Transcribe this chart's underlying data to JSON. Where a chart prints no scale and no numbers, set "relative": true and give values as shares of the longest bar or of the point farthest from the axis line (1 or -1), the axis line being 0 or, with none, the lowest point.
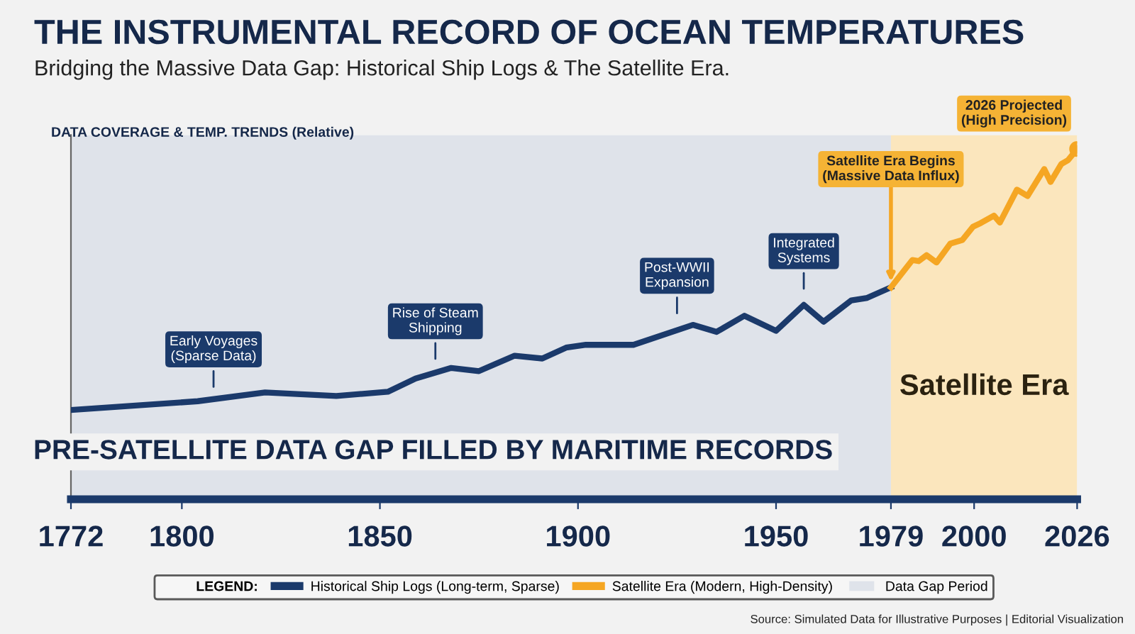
{
  "chart_data": {
    "type": "line",
    "title": "THE INSTRUMENTAL RECORD OF OCEAN TEMPERATURES",
    "subtitle": "Bridging the Massive Data Gap: Historical Ship Logs & The Satellite Era.",
    "ylabel": "DATA COVERAGE & TEMP. TRENDS (Relative)",
    "legend_title": "LEGEND:",
    "relative": true,
    "xlim": [
      1772,
      2026
    ],
    "xticks": [
      1772,
      1800,
      1850,
      1900,
      1950,
      1979,
      2000,
      2026
    ],
    "series": [
      {
        "name": "Historical Ship Logs (Long-term, Sparse)",
        "color": "#1b3a6b",
        "x": [
          1772,
          1804,
          1821,
          1839,
          1852,
          1859,
          1868,
          1875,
          1884,
          1891,
          1897,
          1902,
          1914,
          1929,
          1935,
          1942,
          1950,
          1957,
          1962,
          1969,
          1973,
          1979
        ],
        "values": [
          0.255,
          0.28,
          0.305,
          0.295,
          0.307,
          0.345,
          0.375,
          0.366,
          0.41,
          0.402,
          0.433,
          0.441,
          0.441,
          0.498,
          0.478,
          0.524,
          0.481,
          0.555,
          0.507,
          0.568,
          0.575,
          0.605
        ]
      },
      {
        "name": "Satellite Era (Modern, High-Density)",
        "color": "#f5a623",
        "x": [
          1979,
          1984.4,
          1986,
          1988,
          1990.5,
          1994,
          1997,
          1999.7,
          2001.7,
          2005,
          2006.5,
          2010.8,
          2013.5,
          2017.7,
          2019.3,
          2022,
          2023.7,
          2026
        ],
        "values": [
          0.605,
          0.683,
          0.68,
          0.697,
          0.676,
          0.73,
          0.74,
          0.778,
          0.789,
          0.81,
          0.79,
          0.884,
          0.866,
          0.943,
          0.906,
          0.957,
          0.968,
          1.0
        ]
      }
    ],
    "bands": [
      {
        "axis": "x",
        "from": 1772,
        "to": 1979,
        "label": "Data Gap Period",
        "color": "#dfe3ea"
      },
      {
        "axis": "x",
        "from": 1979,
        "to": 2026,
        "color": "#fbe6bd"
      }
    ],
    "annotations": [
      {
        "text": "Early Voyages\n(Sparse Data)",
        "x": 1808,
        "y": 0.28
      },
      {
        "text": "Rise of Steam\nShipping",
        "x": 1864,
        "y": 0.36
      },
      {
        "text": "Post-WWII\nExpansion",
        "x": 1925,
        "y": 0.49
      },
      {
        "text": "Integrated\nSystems",
        "x": 1957,
        "y": 0.56
      },
      {
        "text": "Satellite Era Begins\n(Massive Data Influx)",
        "x": 1979,
        "y": 0.605
      },
      {
        "text": "2026 Projected\n(High Precision)",
        "x": 2026,
        "y": 1.0
      },
      "Satellite Era",
      "PRE-SATELLITE DATA GAP FILLED BY MARITIME RECORDS",
      "Source: Simulated Data for Illustrative Purposes | Editorial Visualization"
    ],
    "legend": "bottom",
    "grid": false,
    "marker": "none",
    "line_style": "solid"
  }
}
